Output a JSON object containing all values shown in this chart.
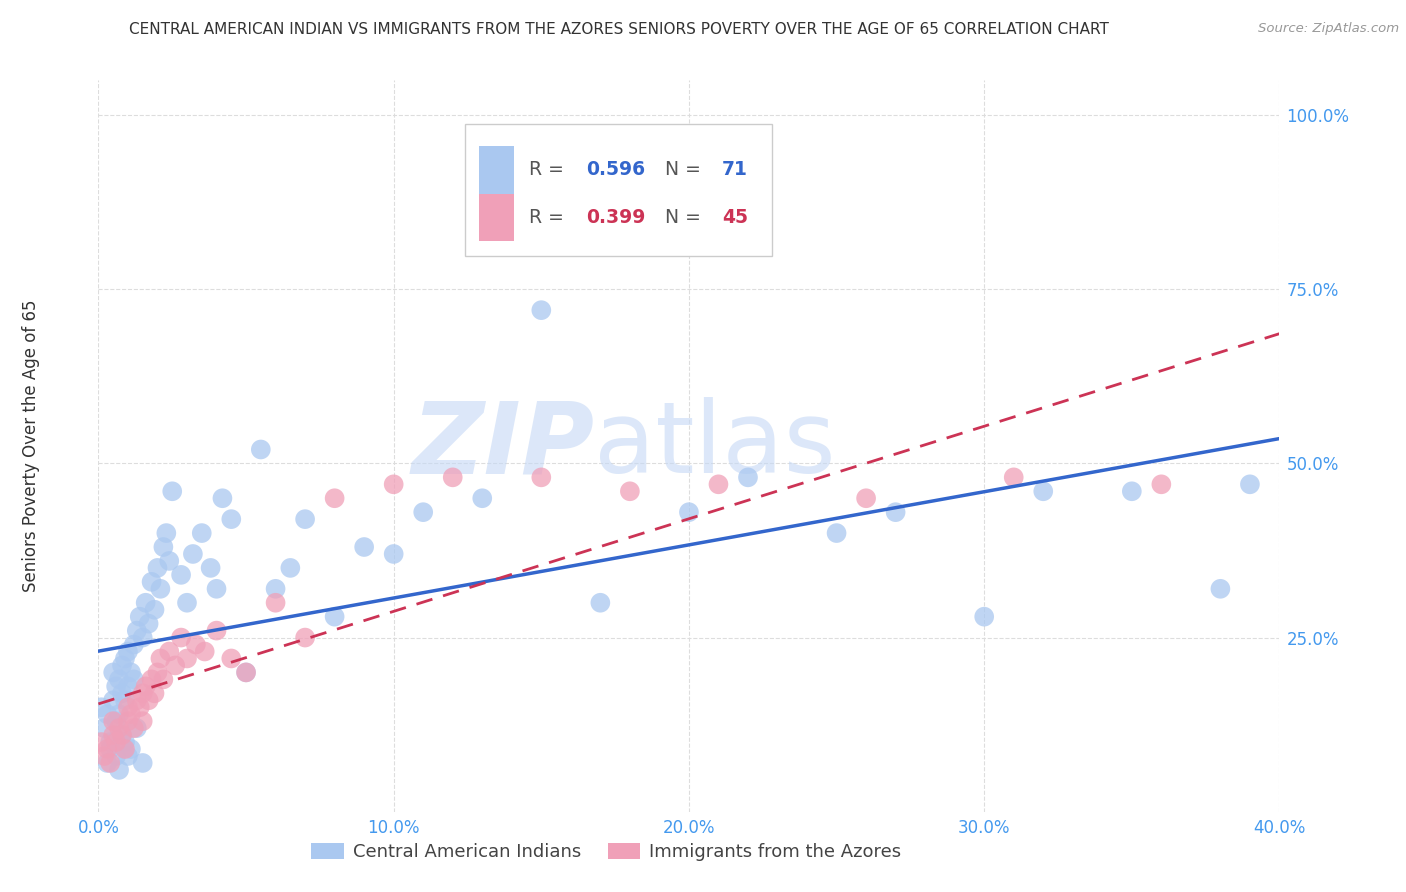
{
  "title": "CENTRAL AMERICAN INDIAN VS IMMIGRANTS FROM THE AZORES SENIORS POVERTY OVER THE AGE OF 65 CORRELATION CHART",
  "source": "Source: ZipAtlas.com",
  "ylabel": "Seniors Poverty Over the Age of 65",
  "xlim": [
    0.0,
    0.4
  ],
  "ylim": [
    0.0,
    1.05
  ],
  "xticks": [
    0.0,
    0.1,
    0.2,
    0.3,
    0.4
  ],
  "yticks": [
    0.25,
    0.5,
    0.75,
    1.0
  ],
  "xtick_labels": [
    "0.0%",
    "10.0%",
    "20.0%",
    "30.0%",
    "40.0%"
  ],
  "ytick_labels": [
    "25.0%",
    "50.0%",
    "75.0%",
    "100.0%"
  ],
  "legend_labels": [
    "Central American Indians",
    "Immigrants from the Azores"
  ],
  "blue_R": "0.596",
  "blue_N": "71",
  "pink_R": "0.399",
  "pink_N": "45",
  "blue_color": "#aac8f0",
  "pink_color": "#f0a0b8",
  "blue_line_color": "#3366cc",
  "pink_line_color": "#cc3355",
  "watermark_zip": "ZIP",
  "watermark_atlas": "atlas",
  "title_color": "#333333",
  "source_color": "#999999",
  "tick_color": "#4499ee",
  "ylabel_color": "#333333",
  "grid_color": "#dddddd",
  "blue_scatter_x": [
    0.001,
    0.002,
    0.003,
    0.004,
    0.005,
    0.005,
    0.006,
    0.006,
    0.007,
    0.007,
    0.008,
    0.008,
    0.009,
    0.009,
    0.01,
    0.01,
    0.011,
    0.012,
    0.012,
    0.013,
    0.014,
    0.015,
    0.016,
    0.017,
    0.018,
    0.019,
    0.02,
    0.021,
    0.022,
    0.023,
    0.024,
    0.025,
    0.028,
    0.03,
    0.032,
    0.035,
    0.038,
    0.04,
    0.042,
    0.045,
    0.05,
    0.055,
    0.06,
    0.065,
    0.07,
    0.08,
    0.09,
    0.1,
    0.11,
    0.13,
    0.15,
    0.17,
    0.2,
    0.22,
    0.25,
    0.27,
    0.3,
    0.32,
    0.35,
    0.38,
    0.39,
    0.003,
    0.004,
    0.006,
    0.007,
    0.008,
    0.009,
    0.01,
    0.011,
    0.013,
    0.015
  ],
  "blue_scatter_y": [
    0.15,
    0.12,
    0.14,
    0.1,
    0.16,
    0.2,
    0.13,
    0.18,
    0.14,
    0.19,
    0.17,
    0.21,
    0.16,
    0.22,
    0.18,
    0.23,
    0.2,
    0.24,
    0.19,
    0.26,
    0.28,
    0.25,
    0.3,
    0.27,
    0.33,
    0.29,
    0.35,
    0.32,
    0.38,
    0.4,
    0.36,
    0.46,
    0.34,
    0.3,
    0.37,
    0.4,
    0.35,
    0.32,
    0.45,
    0.42,
    0.2,
    0.52,
    0.32,
    0.35,
    0.42,
    0.28,
    0.38,
    0.37,
    0.43,
    0.45,
    0.72,
    0.3,
    0.43,
    0.48,
    0.4,
    0.43,
    0.28,
    0.46,
    0.46,
    0.32,
    0.47,
    0.07,
    0.09,
    0.08,
    0.06,
    0.11,
    0.1,
    0.08,
    0.09,
    0.12,
    0.07
  ],
  "pink_scatter_x": [
    0.001,
    0.002,
    0.003,
    0.004,
    0.005,
    0.005,
    0.006,
    0.007,
    0.008,
    0.009,
    0.01,
    0.01,
    0.011,
    0.012,
    0.013,
    0.014,
    0.015,
    0.015,
    0.016,
    0.017,
    0.018,
    0.019,
    0.02,
    0.021,
    0.022,
    0.024,
    0.026,
    0.028,
    0.03,
    0.033,
    0.036,
    0.04,
    0.045,
    0.05,
    0.06,
    0.07,
    0.08,
    0.1,
    0.12,
    0.15,
    0.18,
    0.21,
    0.26,
    0.31,
    0.36
  ],
  "pink_scatter_y": [
    0.1,
    0.08,
    0.09,
    0.07,
    0.11,
    0.13,
    0.1,
    0.12,
    0.11,
    0.09,
    0.13,
    0.15,
    0.14,
    0.12,
    0.16,
    0.15,
    0.13,
    0.17,
    0.18,
    0.16,
    0.19,
    0.17,
    0.2,
    0.22,
    0.19,
    0.23,
    0.21,
    0.25,
    0.22,
    0.24,
    0.23,
    0.26,
    0.22,
    0.2,
    0.3,
    0.25,
    0.45,
    0.47,
    0.48,
    0.48,
    0.46,
    0.47,
    0.45,
    0.48,
    0.47
  ]
}
